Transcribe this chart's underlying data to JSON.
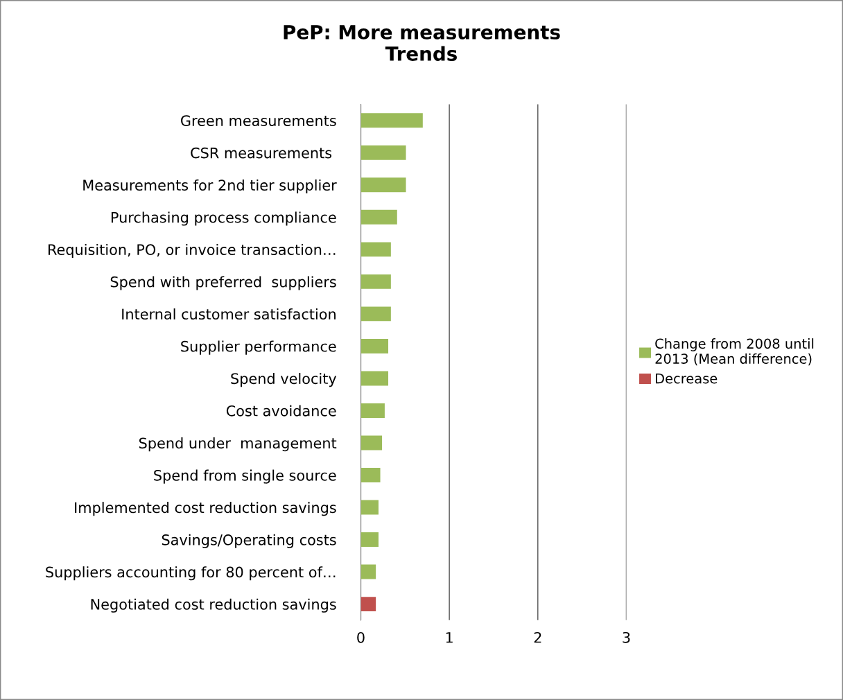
{
  "chart_data": {
    "type": "bar",
    "orientation": "horizontal",
    "title": "PeP: More measurements\nTrends",
    "categories": [
      "Green measurements",
      "CSR measurements ",
      "Measurements for 2nd tier supplier",
      "Purchasing process compliance",
      "Requisition, PO, or invoice transaction…",
      "Spend with preferred  suppliers",
      "Internal customer satisfaction",
      "Supplier performance",
      "Spend velocity",
      "Cost avoidance",
      "Spend under  management",
      "Spend from single source",
      "Implemented cost reduction savings",
      "Savings/Operating costs",
      "Suppliers accounting for 80 percent of…",
      "Negotiated cost reduction savings"
    ],
    "series": [
      {
        "name": "Change from 2008 until\n2013 (Mean difference)",
        "color": "#9bbb59",
        "values": [
          0.7,
          0.51,
          0.51,
          0.41,
          0.34,
          0.34,
          0.34,
          0.31,
          0.31,
          0.27,
          0.24,
          0.22,
          0.2,
          0.2,
          0.17,
          null
        ]
      },
      {
        "name": "Decrease",
        "color": "#c0504d",
        "values": [
          null,
          null,
          null,
          null,
          null,
          null,
          null,
          null,
          null,
          null,
          null,
          null,
          null,
          null,
          null,
          0.17
        ]
      }
    ],
    "xlim": [
      0,
      3
    ],
    "xticks": [
      0,
      1,
      2,
      3
    ],
    "grid": "x",
    "legend": "right"
  }
}
